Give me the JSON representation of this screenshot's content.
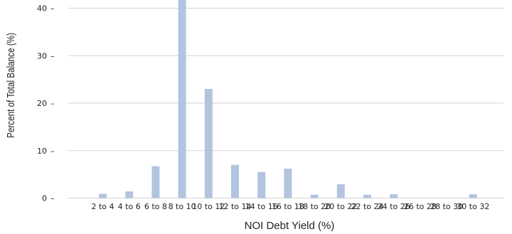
{
  "chart_data": {
    "type": "bar",
    "xlabel": "NOI Debt Yield (%)",
    "ylabel": "Percent of Total Balance (%)",
    "categories": [
      "2 to 4",
      "4 to 6",
      "6 to 8",
      "8 to 10",
      "10 to 12",
      "12 to 14",
      "14 to 16",
      "16 to 18",
      "18 to 20",
      "20 to 22",
      "22 to 24",
      "24 to 26",
      "26 to 28",
      "28 to 30",
      "30 to 32"
    ],
    "values": [
      0.9,
      1.4,
      6.7,
      42.5,
      23.0,
      7.0,
      5.5,
      6.2,
      0.7,
      2.9,
      0.7,
      0.8,
      0.0,
      0.0,
      0.8
    ],
    "yticks": [
      0,
      10,
      20,
      30,
      40
    ],
    "ylim": [
      0,
      40.5
    ],
    "grid": true,
    "bar_color": "#b2c4de",
    "grid_color": "#d3d3d3"
  }
}
